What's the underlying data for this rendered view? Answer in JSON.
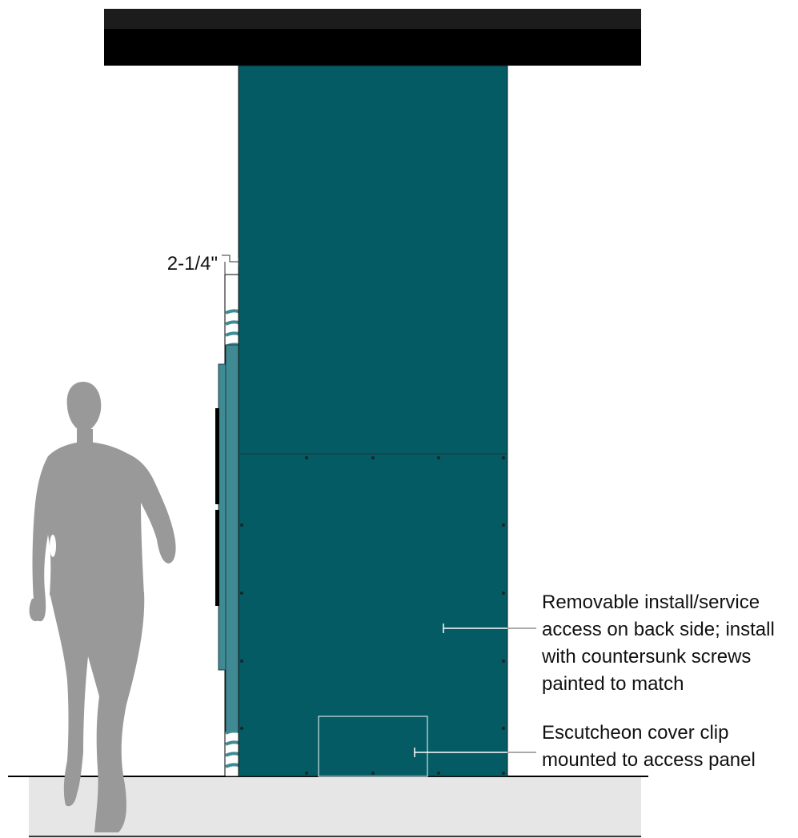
{
  "dimension": {
    "text": "2-1/4\""
  },
  "callouts": {
    "access_panel": {
      "lines": [
        "Removable install/service",
        "access on back side; install",
        "with countersunk screws",
        "painted to match"
      ]
    },
    "escutcheon": {
      "lines": [
        "Escutcheon cover clip",
        "mounted to access panel"
      ]
    }
  },
  "colors": {
    "panel": "#045b63",
    "panel_side": "#3f8a93",
    "soffit": "#000000",
    "floor": "#e5e5e5",
    "human": "#999999"
  }
}
